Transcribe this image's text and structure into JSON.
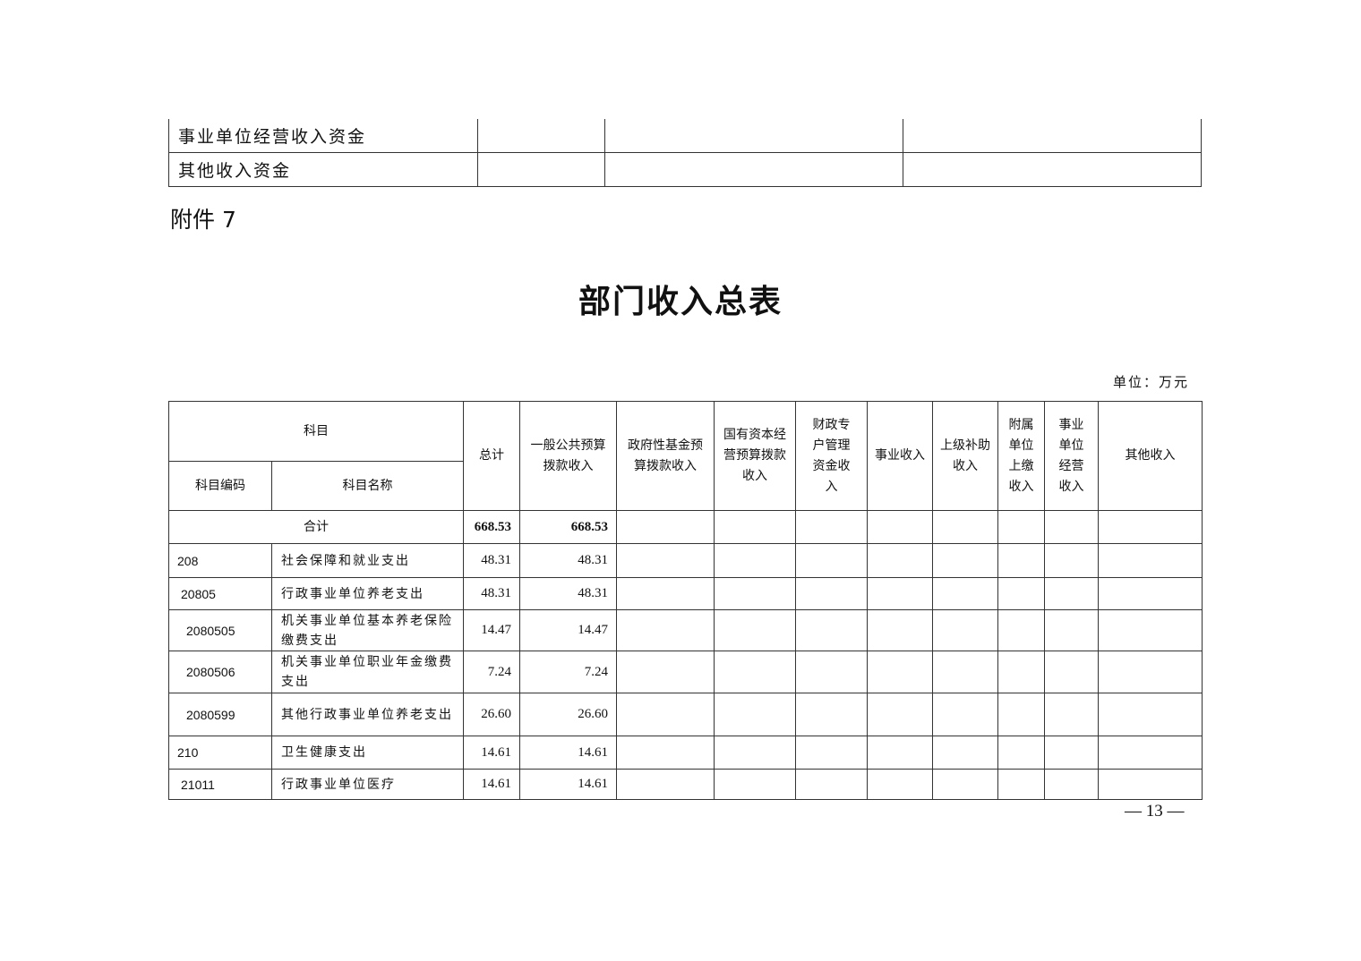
{
  "prev_table": {
    "rows": [
      "事业单位经营收入资金",
      "其他收入资金"
    ]
  },
  "attachment": "附件 7",
  "title": "部门收入总表",
  "unit": "单位：万元",
  "headers": {
    "subject": "科目",
    "code": "科目编码",
    "name": "科目名称",
    "total": "总计",
    "general": "一般公共预算拨款收入",
    "gov_fund": "政府性基金预算拨款收入",
    "state_capital": "国有资本经营预算拨款收入",
    "fiscal_account": "财政专户管理资金收入",
    "business": "事业收入",
    "superior": "上级补助收入",
    "affiliated": "附属单位上缴收入",
    "operation": "事业单位经营收入",
    "other": "其他收入"
  },
  "total_row": {
    "label": "合计",
    "total": "668.53",
    "general": "668.53"
  },
  "rows": [
    {
      "code": "208",
      "name": "社会保障和就业支出",
      "total": "48.31",
      "general": "48.31"
    },
    {
      "code": "20805",
      "name": "行政事业单位养老支出",
      "total": "48.31",
      "general": "48.31"
    },
    {
      "code": "2080505",
      "name": "机关事业单位基本养老保险缴费支出",
      "total": "14.47",
      "general": "14.47"
    },
    {
      "code": "2080506",
      "name": "机关事业单位职业年金缴费支出",
      "total": "7.24",
      "general": "7.24"
    },
    {
      "code": "2080599",
      "name": "其他行政事业单位养老支出",
      "total": "26.60",
      "general": "26.60"
    },
    {
      "code": "210",
      "name": "卫生健康支出",
      "total": "14.61",
      "general": "14.61"
    },
    {
      "code": "21011",
      "name": "行政事业单位医疗",
      "total": "14.61",
      "general": "14.61"
    }
  ],
  "page_number": "— 13 —"
}
